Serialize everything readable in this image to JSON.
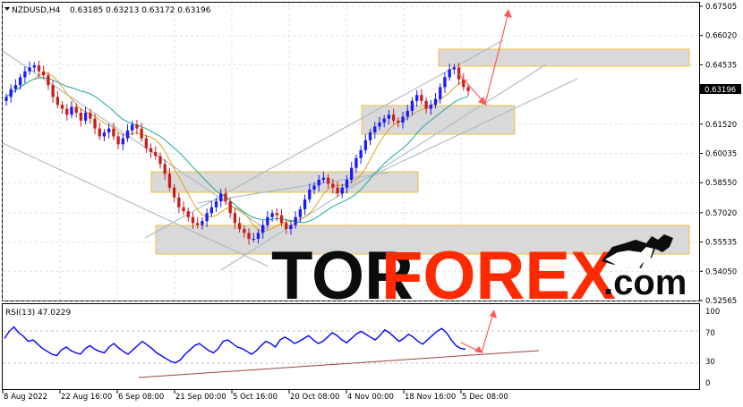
{
  "header": {
    "symbol": "NZDUSD,H4",
    "open": "0.63185",
    "high": "0.63213",
    "low": "0.63172",
    "close": "0.63196"
  },
  "price_axis": {
    "ticks": [
      "0.67505",
      "0.66020",
      "0.64535",
      "0.63196",
      "0.61520",
      "0.60035",
      "0.58550",
      "0.57020",
      "0.55535",
      "0.54050",
      "0.52565"
    ],
    "current": "0.63196"
  },
  "rsi": {
    "label": "RSI(13) 47.0229",
    "levels": [
      "100",
      "70",
      "30",
      "0"
    ]
  },
  "time_axis": {
    "labels": [
      "8 Aug 2022",
      "22 Aug 16:00",
      "6 Sep 08:00",
      "21 Sep 00:00",
      "5 Oct 16:00",
      "20 Oct 08:00",
      "4 Nov 00:00",
      "18 Nov 16:00",
      "5 Dec 08:00"
    ]
  },
  "logo": {
    "part1": "TOR",
    "part2": "FOREX",
    "part3": ".com"
  },
  "colors": {
    "bull": "#1a1aff",
    "bear": "#c81e1e",
    "ma_fast": "#e0a020",
    "ma_slow": "#20a8a0",
    "zone_fill": "#d9d9d9",
    "zone_border": "#f0c040",
    "arrow": "#ff5a5a",
    "rsi": "#0000ff"
  },
  "chart_data": {
    "type": "candlestick",
    "series": [
      {
        "values": [
          0.629,
          0.633,
          0.635,
          0.639,
          0.642,
          0.644,
          0.645,
          0.642,
          0.64,
          0.635,
          0.629,
          0.625,
          0.623,
          0.62,
          0.624,
          0.621,
          0.617,
          0.621,
          0.618,
          0.613,
          0.609,
          0.611,
          0.613,
          0.609,
          0.605,
          0.608,
          0.612,
          0.615,
          0.613,
          0.608,
          0.603,
          0.601,
          0.599,
          0.595,
          0.59,
          0.583,
          0.578,
          0.573,
          0.571,
          0.568,
          0.565,
          0.564,
          0.566,
          0.57,
          0.573,
          0.576,
          0.58,
          0.576,
          0.57,
          0.565,
          0.562,
          0.56,
          0.557,
          0.557,
          0.56,
          0.564,
          0.568,
          0.57,
          0.569,
          0.565,
          0.562,
          0.564,
          0.568,
          0.572,
          0.577,
          0.582,
          0.584,
          0.587,
          0.588,
          0.585,
          0.583,
          0.58,
          0.583,
          0.587,
          0.593,
          0.598,
          0.602,
          0.607,
          0.611,
          0.614,
          0.616,
          0.618,
          0.62,
          0.617,
          0.616,
          0.619,
          0.622,
          0.627,
          0.63,
          0.627,
          0.623,
          0.625,
          0.628,
          0.634,
          0.639,
          0.643,
          0.644,
          0.638,
          0.634,
          0.632
        ]
      }
    ],
    "ylim": [
      0.52565,
      0.67505
    ],
    "rsi_values": [
      62,
      72,
      78,
      70,
      65,
      58,
      60,
      54,
      48,
      44,
      40,
      38,
      46,
      50,
      45,
      42,
      40,
      48,
      52,
      47,
      44,
      42,
      50,
      55,
      49,
      44,
      40,
      46,
      52,
      58,
      53,
      48,
      42,
      38,
      34,
      30,
      28,
      32,
      40,
      46,
      52,
      55,
      50,
      45,
      42,
      48,
      58,
      60,
      55,
      50,
      48,
      44,
      40,
      45,
      52,
      58,
      55,
      50,
      60,
      64,
      60,
      55,
      58,
      62,
      66,
      60,
      55,
      58,
      64,
      70,
      66,
      60,
      56,
      62,
      68,
      72,
      68,
      64,
      60,
      66,
      74,
      70,
      64,
      58,
      62,
      68,
      64,
      58,
      54,
      60,
      66,
      72,
      76,
      70,
      60,
      52,
      48,
      47
    ]
  }
}
